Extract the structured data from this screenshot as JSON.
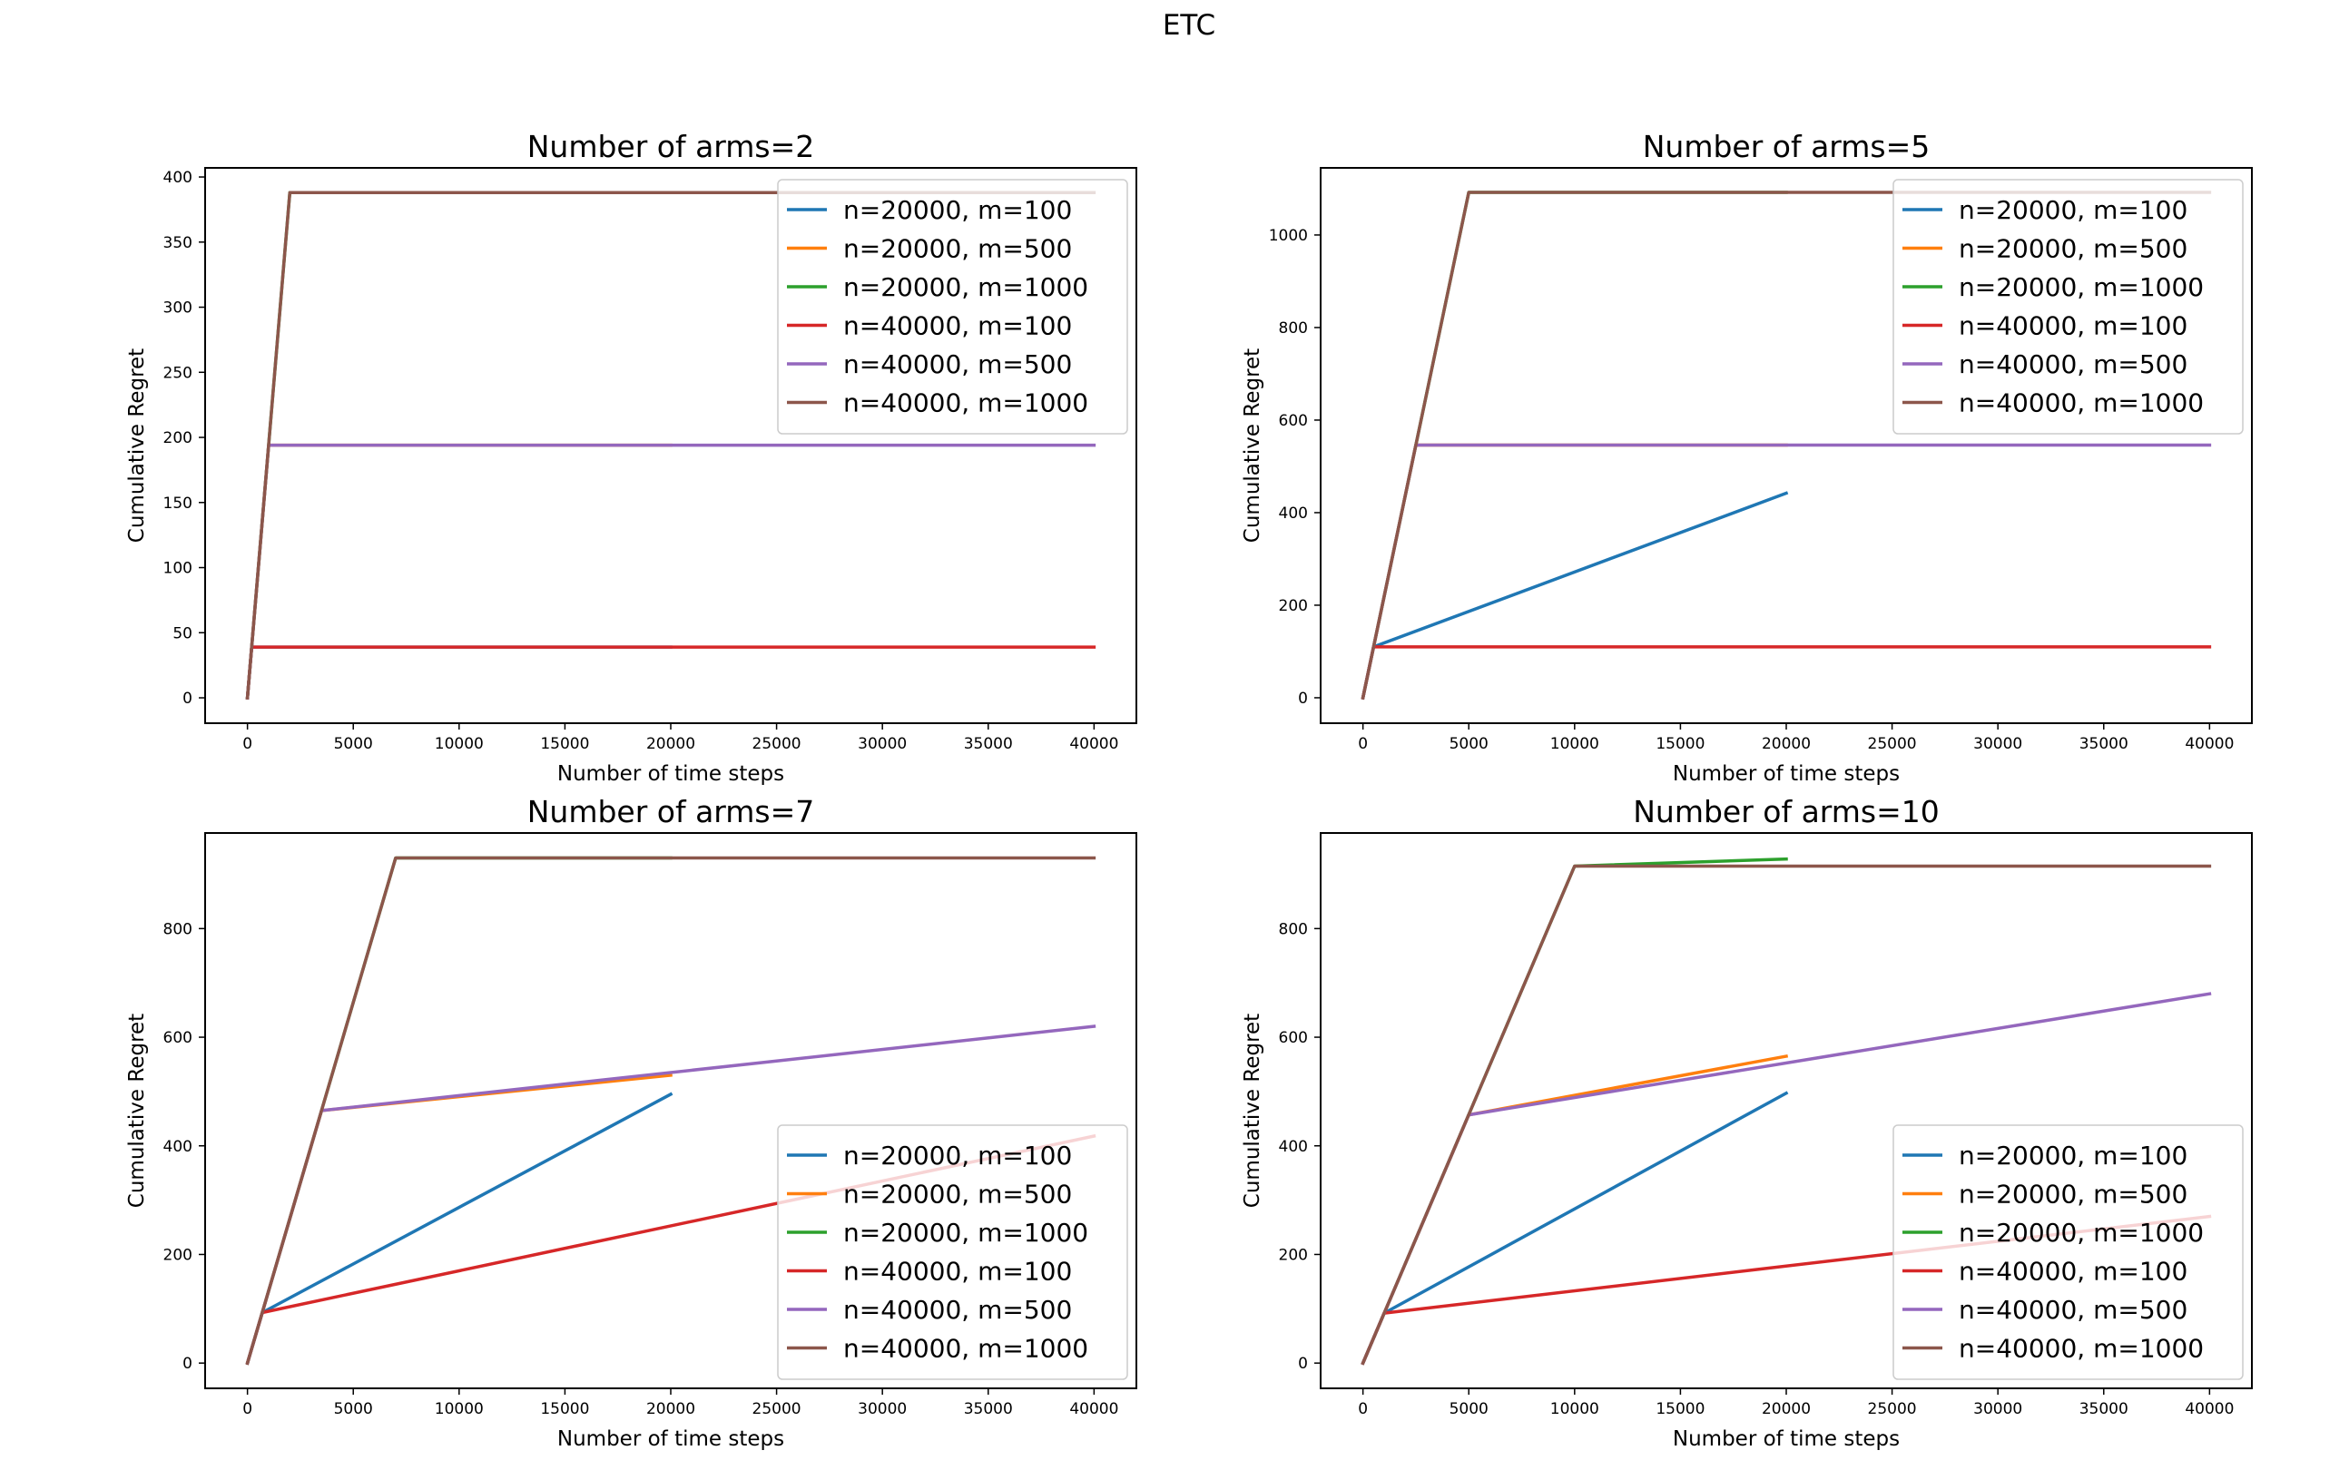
{
  "figure": {
    "title": "ETC"
  },
  "colors": {
    "n=20000, m=100": "#1f77b4",
    "n=20000, m=500": "#ff7f0e",
    "n=20000, m=1000": "#2ca02c",
    "n=40000, m=100": "#d62728",
    "n=40000, m=500": "#9467bd",
    "n=40000, m=1000": "#8c564b"
  },
  "chart_data": [
    {
      "type": "line",
      "title": "Number of arms=2",
      "xlabel": "Number of time steps",
      "ylabel": "Cumulative Regret",
      "xlim": [
        -2000,
        42000
      ],
      "ylim": [
        -19.5,
        407
      ],
      "xticks": [
        0,
        5000,
        10000,
        15000,
        20000,
        25000,
        30000,
        35000,
        40000
      ],
      "yticks": [
        0,
        50,
        100,
        150,
        200,
        250,
        300,
        350,
        400
      ],
      "legend": "top-right",
      "series": [
        {
          "name": "n=20000, m=100",
          "x": [
            0,
            200,
            20000
          ],
          "y": [
            0,
            39,
            39
          ]
        },
        {
          "name": "n=20000, m=500",
          "x": [
            0,
            1000,
            20000
          ],
          "y": [
            0,
            194,
            194
          ]
        },
        {
          "name": "n=20000, m=1000",
          "x": [
            0,
            2000,
            20000
          ],
          "y": [
            0,
            388,
            388
          ]
        },
        {
          "name": "n=40000, m=100",
          "x": [
            0,
            200,
            40000
          ],
          "y": [
            0,
            39,
            39
          ]
        },
        {
          "name": "n=40000, m=500",
          "x": [
            0,
            1000,
            40000
          ],
          "y": [
            0,
            194,
            194
          ]
        },
        {
          "name": "n=40000, m=1000",
          "x": [
            0,
            2000,
            40000
          ],
          "y": [
            0,
            388,
            388
          ]
        }
      ]
    },
    {
      "type": "line",
      "title": "Number of arms=5",
      "xlabel": "Number of time steps",
      "ylabel": "Cumulative Regret",
      "xlim": [
        -2000,
        42000
      ],
      "ylim": [
        -55,
        1145
      ],
      "xticks": [
        0,
        5000,
        10000,
        15000,
        20000,
        25000,
        30000,
        35000,
        40000
      ],
      "yticks": [
        0,
        200,
        400,
        600,
        800,
        1000
      ],
      "legend": "top-right",
      "series": [
        {
          "name": "n=20000, m=100",
          "x": [
            0,
            500,
            20000
          ],
          "y": [
            0,
            110,
            442
          ]
        },
        {
          "name": "n=20000, m=500",
          "x": [
            0,
            2500,
            20000
          ],
          "y": [
            0,
            546,
            546
          ]
        },
        {
          "name": "n=20000, m=1000",
          "x": [
            0,
            5000,
            20000
          ],
          "y": [
            0,
            1092,
            1092
          ]
        },
        {
          "name": "n=40000, m=100",
          "x": [
            0,
            500,
            40000
          ],
          "y": [
            0,
            110,
            110
          ]
        },
        {
          "name": "n=40000, m=500",
          "x": [
            0,
            2500,
            40000
          ],
          "y": [
            0,
            546,
            546
          ]
        },
        {
          "name": "n=40000, m=1000",
          "x": [
            0,
            5000,
            40000
          ],
          "y": [
            0,
            1092,
            1092
          ]
        }
      ]
    },
    {
      "type": "line",
      "title": "Number of arms=7",
      "xlabel": "Number of time steps",
      "ylabel": "Cumulative Regret",
      "xlim": [
        -2000,
        42000
      ],
      "ylim": [
        -46.5,
        976
      ],
      "xticks": [
        0,
        5000,
        10000,
        15000,
        20000,
        25000,
        30000,
        35000,
        40000
      ],
      "yticks": [
        0,
        200,
        400,
        600,
        800
      ],
      "legend": "lower-right",
      "series": [
        {
          "name": "n=20000, m=100",
          "x": [
            0,
            700,
            20000
          ],
          "y": [
            0,
            93,
            495
          ]
        },
        {
          "name": "n=20000, m=500",
          "x": [
            0,
            3500,
            20000
          ],
          "y": [
            0,
            465,
            530
          ]
        },
        {
          "name": "n=20000, m=1000",
          "x": [
            0,
            7000,
            20000
          ],
          "y": [
            0,
            930,
            930
          ]
        },
        {
          "name": "n=40000, m=100",
          "x": [
            0,
            700,
            40000
          ],
          "y": [
            0,
            93,
            418
          ]
        },
        {
          "name": "n=40000, m=500",
          "x": [
            0,
            3500,
            40000
          ],
          "y": [
            0,
            465,
            620
          ]
        },
        {
          "name": "n=40000, m=1000",
          "x": [
            0,
            7000,
            40000
          ],
          "y": [
            0,
            930,
            930
          ]
        }
      ]
    },
    {
      "type": "line",
      "title": "Number of arms=10",
      "xlabel": "Number of time steps",
      "ylabel": "Cumulative Regret",
      "xlim": [
        -2000,
        42000
      ],
      "ylim": [
        -46.5,
        976
      ],
      "xticks": [
        0,
        5000,
        10000,
        15000,
        20000,
        25000,
        30000,
        35000,
        40000
      ],
      "yticks": [
        0,
        200,
        400,
        600,
        800
      ],
      "legend": "lower-right",
      "series": [
        {
          "name": "n=20000, m=100",
          "x": [
            0,
            1000,
            20000
          ],
          "y": [
            0,
            92,
            497
          ]
        },
        {
          "name": "n=20000, m=500",
          "x": [
            0,
            5000,
            20000
          ],
          "y": [
            0,
            457,
            565
          ]
        },
        {
          "name": "n=20000, m=1000",
          "x": [
            0,
            10000,
            20000
          ],
          "y": [
            0,
            915,
            928
          ]
        },
        {
          "name": "n=40000, m=100",
          "x": [
            0,
            1000,
            40000
          ],
          "y": [
            0,
            92,
            270
          ]
        },
        {
          "name": "n=40000, m=500",
          "x": [
            0,
            5000,
            40000
          ],
          "y": [
            0,
            457,
            680
          ]
        },
        {
          "name": "n=40000, m=1000",
          "x": [
            0,
            10000,
            40000
          ],
          "y": [
            0,
            915,
            915
          ]
        }
      ]
    }
  ]
}
